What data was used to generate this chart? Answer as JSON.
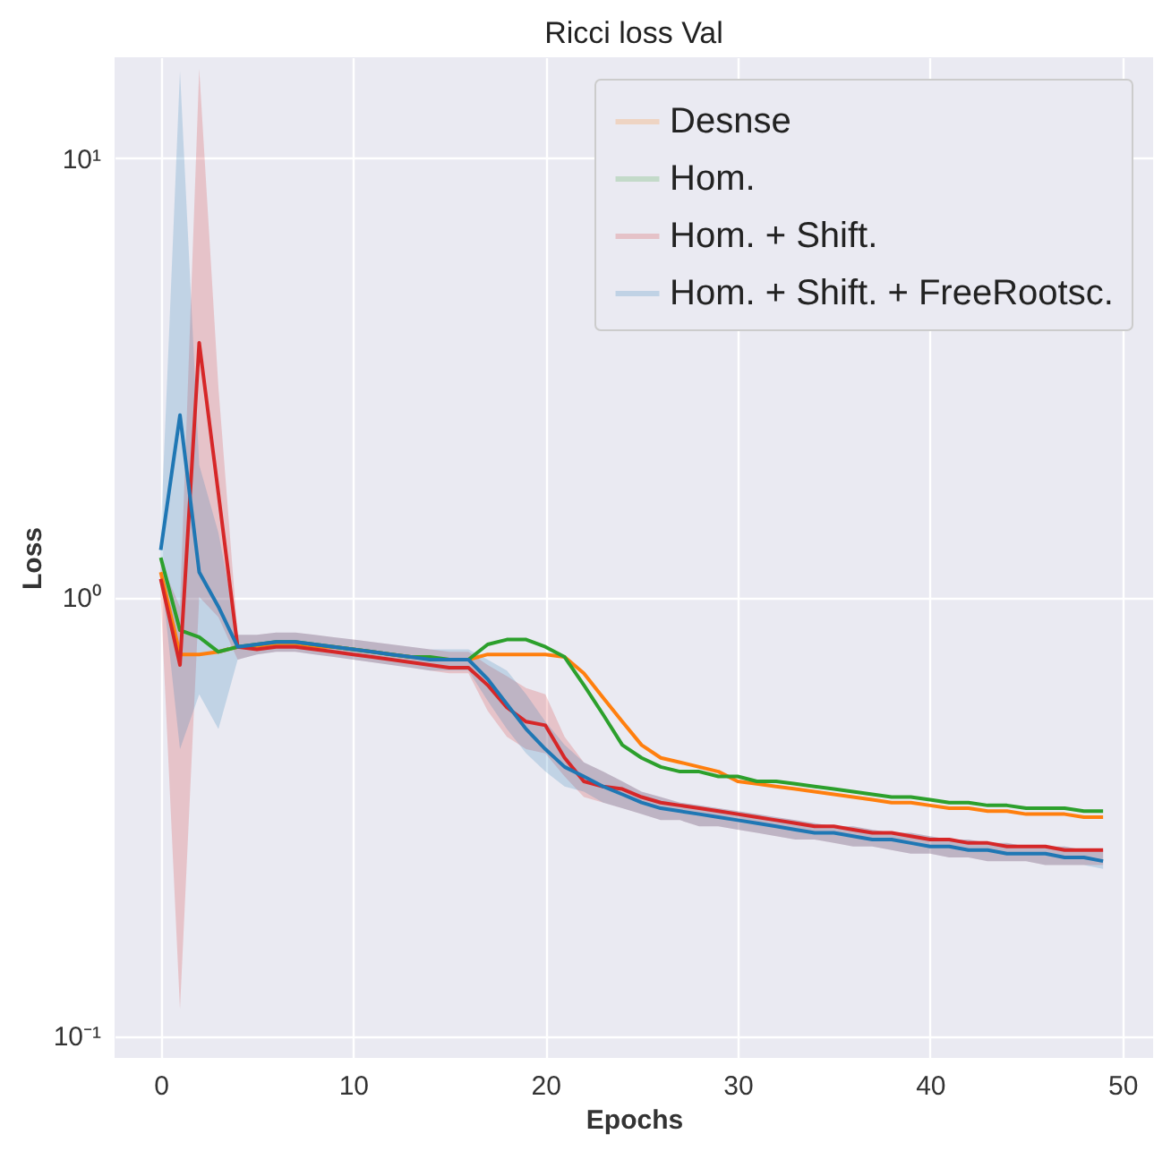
{
  "chart_data": {
    "type": "line",
    "title": "Ricci loss Val",
    "xlabel": "Epochs",
    "ylabel": "Loss",
    "x": [
      0,
      1,
      2,
      3,
      4,
      5,
      6,
      7,
      8,
      9,
      10,
      11,
      12,
      13,
      14,
      15,
      16,
      17,
      18,
      19,
      20,
      21,
      22,
      23,
      24,
      25,
      26,
      27,
      28,
      29,
      30,
      31,
      32,
      33,
      34,
      35,
      36,
      37,
      38,
      39,
      40,
      41,
      42,
      43,
      44,
      45,
      46,
      47,
      48,
      49
    ],
    "xlim": [
      -2.4,
      51.6
    ],
    "xticks": [
      0,
      10,
      20,
      30,
      40,
      50
    ],
    "ylim": [
      0.089,
      17
    ],
    "yticks": [
      {
        "value": 0.1,
        "label": "10⁻¹"
      },
      {
        "value": 1,
        "label": "10⁰"
      },
      {
        "value": 10,
        "label": "10¹"
      }
    ],
    "log": "y",
    "grid": true,
    "legend": "top right",
    "marker": "none",
    "line_style": "solid",
    "series": [
      {
        "name": "Desnse",
        "color": "#ff7f0e",
        "values": [
          1.14,
          0.74,
          0.74,
          0.75,
          0.77,
          0.77,
          0.775,
          0.775,
          0.77,
          0.77,
          0.76,
          0.75,
          0.74,
          0.73,
          0.725,
          0.72,
          0.72,
          0.74,
          0.74,
          0.74,
          0.74,
          0.73,
          0.67,
          0.59,
          0.52,
          0.46,
          0.43,
          0.42,
          0.41,
          0.4,
          0.38,
          0.375,
          0.37,
          0.365,
          0.36,
          0.355,
          0.35,
          0.345,
          0.34,
          0.34,
          0.335,
          0.33,
          0.33,
          0.325,
          0.325,
          0.32,
          0.32,
          0.32,
          0.315,
          0.315
        ]
      },
      {
        "name": "Hom.",
        "color": "#2ca02c",
        "values": [
          1.23,
          0.84,
          0.81,
          0.75,
          0.77,
          0.78,
          0.79,
          0.79,
          0.78,
          0.77,
          0.76,
          0.75,
          0.74,
          0.73,
          0.73,
          0.72,
          0.72,
          0.78,
          0.8,
          0.8,
          0.77,
          0.73,
          0.63,
          0.54,
          0.46,
          0.43,
          0.41,
          0.4,
          0.4,
          0.39,
          0.39,
          0.38,
          0.38,
          0.375,
          0.37,
          0.365,
          0.36,
          0.355,
          0.35,
          0.35,
          0.345,
          0.34,
          0.34,
          0.335,
          0.335,
          0.33,
          0.33,
          0.33,
          0.325,
          0.325
        ]
      },
      {
        "name": "Hom. + Shift.",
        "color": "#d62728",
        "values": [
          1.1,
          0.7,
          3.8,
          1.72,
          0.77,
          0.76,
          0.77,
          0.77,
          0.76,
          0.75,
          0.74,
          0.73,
          0.72,
          0.71,
          0.7,
          0.69,
          0.69,
          0.63,
          0.56,
          0.52,
          0.51,
          0.43,
          0.38,
          0.37,
          0.365,
          0.35,
          0.34,
          0.335,
          0.33,
          0.325,
          0.32,
          0.315,
          0.31,
          0.305,
          0.3,
          0.3,
          0.295,
          0.29,
          0.29,
          0.285,
          0.28,
          0.28,
          0.275,
          0.275,
          0.27,
          0.27,
          0.27,
          0.265,
          0.265,
          0.265
        ],
        "lower": [
          1.0,
          0.115,
          1.0,
          0.9,
          0.72,
          0.74,
          0.75,
          0.75,
          0.74,
          0.73,
          0.72,
          0.71,
          0.7,
          0.69,
          0.68,
          0.67,
          0.67,
          0.55,
          0.48,
          0.45,
          0.44,
          0.39,
          0.35,
          0.34,
          0.33,
          0.32,
          0.31,
          0.31,
          0.3,
          0.3,
          0.295,
          0.29,
          0.285,
          0.28,
          0.28,
          0.275,
          0.27,
          0.27,
          0.265,
          0.26,
          0.26,
          0.255,
          0.255,
          0.25,
          0.25,
          0.25,
          0.245,
          0.245,
          0.245,
          0.245
        ],
        "upper": [
          1.2,
          0.95,
          16,
          3.0,
          0.82,
          0.82,
          0.83,
          0.83,
          0.82,
          0.81,
          0.8,
          0.79,
          0.78,
          0.77,
          0.76,
          0.75,
          0.75,
          0.7,
          0.66,
          0.62,
          0.6,
          0.48,
          0.42,
          0.4,
          0.38,
          0.36,
          0.35,
          0.34,
          0.335,
          0.33,
          0.325,
          0.32,
          0.315,
          0.31,
          0.305,
          0.3,
          0.3,
          0.295,
          0.29,
          0.29,
          0.285,
          0.28,
          0.28,
          0.275,
          0.275,
          0.27,
          0.27,
          0.27,
          0.265,
          0.265
        ]
      },
      {
        "name": "Hom. + Shift. + FreeRootsc.",
        "color": "#1f77b4",
        "values": [
          1.28,
          2.6,
          1.14,
          0.95,
          0.77,
          0.78,
          0.79,
          0.79,
          0.78,
          0.77,
          0.76,
          0.75,
          0.74,
          0.73,
          0.72,
          0.72,
          0.72,
          0.65,
          0.57,
          0.5,
          0.45,
          0.41,
          0.39,
          0.37,
          0.355,
          0.34,
          0.33,
          0.325,
          0.32,
          0.315,
          0.31,
          0.305,
          0.3,
          0.295,
          0.29,
          0.29,
          0.285,
          0.28,
          0.28,
          0.275,
          0.27,
          0.27,
          0.265,
          0.265,
          0.26,
          0.26,
          0.26,
          0.255,
          0.255,
          0.25
        ],
        "lower": [
          1.15,
          0.45,
          0.6,
          0.5,
          0.72,
          0.74,
          0.75,
          0.75,
          0.74,
          0.73,
          0.72,
          0.71,
          0.7,
          0.69,
          0.68,
          0.68,
          0.68,
          0.58,
          0.5,
          0.44,
          0.4,
          0.37,
          0.36,
          0.34,
          0.33,
          0.32,
          0.31,
          0.31,
          0.3,
          0.3,
          0.295,
          0.29,
          0.285,
          0.28,
          0.28,
          0.275,
          0.27,
          0.27,
          0.265,
          0.26,
          0.26,
          0.255,
          0.255,
          0.25,
          0.25,
          0.25,
          0.245,
          0.245,
          0.245,
          0.24
        ],
        "upper": [
          1.4,
          15.8,
          2.0,
          1.4,
          0.82,
          0.82,
          0.83,
          0.83,
          0.82,
          0.81,
          0.8,
          0.79,
          0.78,
          0.77,
          0.76,
          0.76,
          0.76,
          0.72,
          0.68,
          0.6,
          0.52,
          0.46,
          0.42,
          0.4,
          0.38,
          0.36,
          0.35,
          0.34,
          0.335,
          0.33,
          0.325,
          0.32,
          0.315,
          0.31,
          0.305,
          0.3,
          0.3,
          0.295,
          0.29,
          0.29,
          0.285,
          0.28,
          0.28,
          0.275,
          0.275,
          0.27,
          0.27,
          0.27,
          0.265,
          0.265
        ]
      }
    ]
  }
}
